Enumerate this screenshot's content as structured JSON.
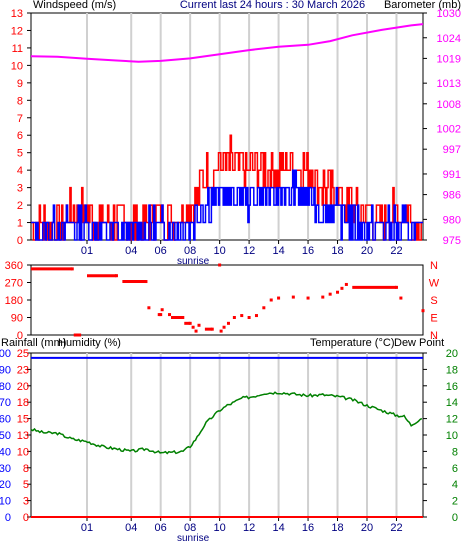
{
  "header": {
    "title": "Current last 24 hours : 30 March 2026"
  },
  "chart_data": [
    {
      "type": "line",
      "panel": "wind-and-pressure",
      "left_axis_label": "Windspeed (m/s)",
      "right_axis_label": "Barometer (mb)",
      "ylim_left": [
        0,
        13
      ],
      "ylim_right": [
        975,
        1030
      ],
      "left_ticks": [
        "0",
        "1",
        "2",
        "3",
        "4",
        "5",
        "6",
        "7",
        "8",
        "9",
        "10",
        "11",
        "12",
        "13"
      ],
      "right_ticks": [
        "975",
        "980",
        "986",
        "991",
        "997",
        "1002",
        "1008",
        "1013",
        "1019",
        "1024",
        "1030"
      ],
      "x_ticks": [
        "01",
        "04",
        "06",
        "08",
        "10",
        "12",
        "14",
        "16",
        "18",
        "20",
        "22"
      ],
      "x_tick_hours": [
        1,
        4,
        6,
        8,
        10,
        12,
        14,
        16,
        18,
        20,
        22
      ],
      "x_range_hours": [
        -2.8,
        23.8
      ],
      "x_annotation": "sunrise",
      "grid": "vertical",
      "colors": {
        "gust": "#ff0000",
        "average": "#0000ff",
        "barometer": "#ff00ff",
        "left_label": "#ff0000",
        "right_label": "#ff00ff"
      },
      "series": [
        {
          "role": "barometer",
          "x": [
            -2.8,
            -1,
            1,
            3,
            4.5,
            6,
            8,
            10,
            12,
            14,
            16,
            17.5,
            19,
            21,
            23,
            23.8
          ],
          "values": [
            1019.5,
            1019.4,
            1018.9,
            1018.5,
            1018.2,
            1018.4,
            1019.0,
            1020.0,
            1021.0,
            1021.8,
            1022.3,
            1023.2,
            1024.6,
            1025.9,
            1027.0,
            1027.3
          ]
        },
        {
          "role": "gust",
          "x": [
            -2.8,
            -1,
            0,
            1,
            2,
            3,
            4,
            5,
            6,
            7,
            8,
            9,
            10,
            11,
            12,
            13,
            14,
            15,
            16,
            17,
            18,
            19,
            20,
            21,
            22,
            23,
            23.8
          ],
          "values": [
            1,
            1,
            1.5,
            1.5,
            1,
            1,
            1,
            1.2,
            1.5,
            1.5,
            2,
            3.5,
            4.5,
            4.5,
            4,
            4.2,
            4,
            4.5,
            4.3,
            3,
            2.5,
            2,
            1.5,
            1.2,
            1.5,
            1.3,
            1
          ]
        },
        {
          "role": "average",
          "x": [
            -2.8,
            -1,
            0,
            1,
            2,
            3,
            4,
            5,
            6,
            7,
            8,
            9,
            10,
            11,
            12,
            13,
            14,
            15,
            16,
            17,
            18,
            19,
            20,
            21,
            22,
            23,
            23.8
          ],
          "values": [
            0.5,
            0.6,
            0.8,
            0.8,
            0.5,
            0.5,
            0.5,
            0.6,
            0.8,
            0.8,
            1,
            2,
            2.5,
            2.5,
            2.3,
            2.5,
            2.5,
            2.8,
            2.5,
            1.8,
            1.5,
            1,
            0.8,
            0.6,
            0.8,
            0.6,
            0.5
          ]
        }
      ]
    },
    {
      "type": "scatter",
      "panel": "wind-direction",
      "ylim": [
        0,
        360
      ],
      "left_ticks": [
        "0",
        "90",
        "180",
        "270",
        "360"
      ],
      "right_ticks": [
        "N",
        "E",
        "S",
        "W",
        "N"
      ],
      "colors": {
        "points": "#ff0000"
      },
      "series": [
        {
          "role": "direction",
          "x": [
            -2.8,
            0,
            0.1,
            0.5,
            1,
            3,
            3.4,
            5,
            5.2,
            5.8,
            6,
            6.1,
            6.6,
            6.7,
            7.5,
            7.6,
            8,
            8.2,
            8.4,
            8.6,
            9,
            9.5,
            10,
            10.1,
            10.3,
            10.6,
            11,
            11.5,
            12,
            12.5,
            13,
            13.5,
            14,
            15,
            16,
            17,
            17.5,
            18,
            18.3,
            18.6,
            19,
            22,
            22.3,
            23.8
          ],
          "values": [
            340,
            340,
            0,
            0,
            305,
            305,
            275,
            275,
            140,
            105,
            105,
            130,
            105,
            90,
            90,
            60,
            60,
            40,
            20,
            50,
            30,
            30,
            360,
            20,
            40,
            60,
            90,
            100,
            90,
            100,
            140,
            180,
            190,
            195,
            190,
            195,
            210,
            220,
            240,
            260,
            245,
            245,
            190,
            125
          ]
        }
      ]
    },
    {
      "type": "line",
      "panel": "rain-humidity-temperature",
      "left_axis_label": "Rainfall (mm)",
      "humidity_label": "Humidity (%)",
      "right_axis_label": "Temperature (°C)",
      "dewpoint_label": "Dew Point",
      "rain_ticks": [
        "0",
        "3",
        "5",
        "8",
        "10",
        "13",
        "15",
        "18",
        "20",
        "23",
        "25"
      ],
      "humidity_ticks": [
        "0",
        "10",
        "20",
        "30",
        "40",
        "50",
        "60",
        "70",
        "80",
        "90",
        "100"
      ],
      "ylim_humidity": [
        0,
        100
      ],
      "right_ticks": [
        "0",
        "2",
        "4",
        "6",
        "8",
        "10",
        "12",
        "14",
        "16",
        "18",
        "20"
      ],
      "ylim_right": [
        0,
        20
      ],
      "x_ticks": [
        "01",
        "04",
        "06",
        "08",
        "10",
        "12",
        "14",
        "16",
        "18",
        "20",
        "22"
      ],
      "x_annotation": "sunrise",
      "grid": "vertical",
      "colors": {
        "rainfall": "#ff0000",
        "humidity": "#0000ff",
        "temperature": "#008000",
        "dewpoint": "#ff00ff"
      },
      "series": [
        {
          "role": "temperature",
          "x": [
            -2.8,
            -2,
            -1,
            0,
            1,
            2,
            3,
            4,
            5,
            6,
            7,
            7.5,
            8,
            8.5,
            9,
            9.5,
            10,
            10.5,
            11,
            11.5,
            12,
            12.5,
            13,
            14,
            15,
            16,
            17,
            18,
            19,
            20,
            21,
            22,
            22.5,
            23,
            23.8
          ],
          "values": [
            10.7,
            10.3,
            10.2,
            9.5,
            9.2,
            8.6,
            8.3,
            8.0,
            8.3,
            7.8,
            7.9,
            8.0,
            8.6,
            9.8,
            11.3,
            12.2,
            13.0,
            13.6,
            14.0,
            14.5,
            14.6,
            14.8,
            15.1,
            15.2,
            15.0,
            14.8,
            14.9,
            14.7,
            14.3,
            13.6,
            13.0,
            12.4,
            12.3,
            11.2,
            12.2
          ]
        },
        {
          "role": "humidity",
          "x": [
            -2.8,
            23.8
          ],
          "values": [
            97,
            97
          ]
        },
        {
          "role": "rainfall",
          "x": [
            -2.8,
            23.8
          ],
          "values": [
            0,
            0
          ]
        }
      ]
    }
  ]
}
